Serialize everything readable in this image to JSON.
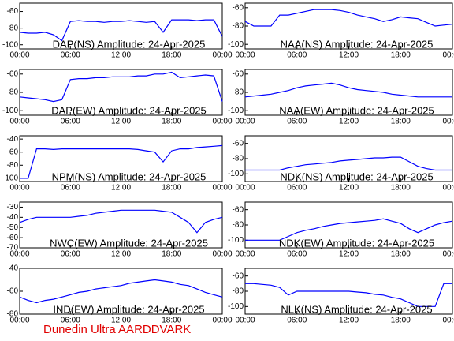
{
  "footer": "Dunedin Ultra AARDDVARK",
  "chart_data": [
    {
      "type": "line",
      "title": "DAP(NS) Amplitude: 24-Apr-2025",
      "color": "#0000ff",
      "x": [
        0,
        1,
        2,
        3,
        4,
        5,
        6,
        7,
        8,
        9,
        10,
        11,
        12,
        13,
        14,
        15,
        16,
        17,
        18,
        19,
        20,
        21,
        22,
        23,
        24
      ],
      "values": [
        -85,
        -86,
        -86,
        -85,
        -88,
        -95,
        -72,
        -71,
        -72,
        -72,
        -73,
        -72,
        -72,
        -71,
        -72,
        -73,
        -72,
        -85,
        -70,
        -70,
        -70,
        -71,
        -70,
        -70,
        -90
      ],
      "xlim": [
        0,
        24
      ],
      "ylim": [
        -105,
        -50
      ],
      "yticks": [
        -60,
        -80,
        -100
      ],
      "xticks": [
        {
          "value": 0,
          "label": "00:00"
        },
        {
          "value": 6,
          "label": "06:00"
        },
        {
          "value": 12,
          "label": "12:00"
        },
        {
          "value": 18,
          "label": "18:00"
        },
        {
          "value": 24,
          "label": "00:00"
        }
      ]
    },
    {
      "type": "line",
      "title": "NAA(NS) Amplitude: 24-Apr-2025",
      "color": "#0000ff",
      "x": [
        0,
        1,
        2,
        3,
        4,
        5,
        6,
        7,
        8,
        9,
        10,
        11,
        12,
        13,
        14,
        15,
        16,
        17,
        18,
        19,
        20,
        21,
        22,
        23,
        24
      ],
      "values": [
        -75,
        -80,
        -80,
        -80,
        -68,
        -68,
        -66,
        -64,
        -62,
        -62,
        -62,
        -63,
        -65,
        -68,
        -70,
        -72,
        -75,
        -73,
        -70,
        -71,
        -72,
        -76,
        -80,
        -79,
        -78
      ],
      "xlim": [
        0,
        24
      ],
      "ylim": [
        -105,
        -55
      ],
      "yticks": [
        -60,
        -80,
        -100
      ],
      "xticks": [
        {
          "value": 0,
          "label": "00:00"
        },
        {
          "value": 6,
          "label": "06:00"
        },
        {
          "value": 12,
          "label": "12:00"
        },
        {
          "value": 18,
          "label": "18:00"
        },
        {
          "value": 24,
          "label": "00:00"
        }
      ]
    },
    {
      "type": "line",
      "title": "DAP(EW) Amplitude: 24-Apr-2025",
      "color": "#0000ff",
      "x": [
        0,
        1,
        2,
        3,
        4,
        5,
        6,
        7,
        8,
        9,
        10,
        11,
        12,
        13,
        14,
        15,
        16,
        17,
        18,
        19,
        20,
        21,
        22,
        23,
        24
      ],
      "values": [
        -85,
        -86,
        -87,
        -88,
        -90,
        -88,
        -66,
        -65,
        -65,
        -64,
        -64,
        -63,
        -63,
        -63,
        -62,
        -62,
        -60,
        -60,
        -58,
        -64,
        -63,
        -62,
        -61,
        -62,
        -90
      ],
      "xlim": [
        0,
        24
      ],
      "ylim": [
        -105,
        -55
      ],
      "yticks": [
        -60,
        -80,
        -100
      ],
      "xticks": [
        {
          "value": 0,
          "label": "00:00"
        },
        {
          "value": 6,
          "label": "06:00"
        },
        {
          "value": 12,
          "label": "12:00"
        },
        {
          "value": 18,
          "label": "18:00"
        },
        {
          "value": 24,
          "label": "00:00"
        }
      ]
    },
    {
      "type": "line",
      "title": "NAA(EW) Amplitude: 24-Apr-2025",
      "color": "#0000ff",
      "x": [
        0,
        1,
        2,
        3,
        4,
        5,
        6,
        7,
        8,
        9,
        10,
        11,
        12,
        13,
        14,
        15,
        16,
        17,
        18,
        19,
        20,
        21,
        22,
        23,
        24
      ],
      "values": [
        -85,
        -84,
        -83,
        -82,
        -80,
        -78,
        -75,
        -73,
        -72,
        -71,
        -70,
        -72,
        -75,
        -77,
        -78,
        -79,
        -80,
        -82,
        -83,
        -84,
        -85,
        -85,
        -85,
        -85,
        -85
      ],
      "xlim": [
        0,
        24
      ],
      "ylim": [
        -105,
        -55
      ],
      "yticks": [
        -60,
        -80,
        -100
      ],
      "xticks": [
        {
          "value": 0,
          "label": "00:00"
        },
        {
          "value": 6,
          "label": "06:00"
        },
        {
          "value": 12,
          "label": "12:00"
        },
        {
          "value": 18,
          "label": "18:00"
        },
        {
          "value": 24,
          "label": "00:00"
        }
      ]
    },
    {
      "type": "line",
      "title": "NPM(NS) Amplitude: 24-Apr-2025",
      "color": "#0000ff",
      "x": [
        0,
        1,
        2,
        3,
        4,
        5,
        6,
        7,
        8,
        9,
        10,
        11,
        12,
        13,
        14,
        15,
        16,
        17,
        18,
        19,
        20,
        21,
        22,
        23,
        24
      ],
      "values": [
        -100,
        -100,
        -55,
        -55,
        -56,
        -55,
        -55,
        -55,
        -55,
        -55,
        -55,
        -55,
        -55,
        -55,
        -56,
        -58,
        -60,
        -75,
        -58,
        -55,
        -55,
        -53,
        -52,
        -51,
        -50
      ],
      "xlim": [
        0,
        24
      ],
      "ylim": [
        -105,
        -35
      ],
      "yticks": [
        -40,
        -60,
        -80,
        -100
      ],
      "xticks": [
        {
          "value": 0,
          "label": "00:00"
        },
        {
          "value": 6,
          "label": "06:00"
        },
        {
          "value": 12,
          "label": "12:00"
        },
        {
          "value": 18,
          "label": "18:00"
        },
        {
          "value": 24,
          "label": "00:00"
        }
      ]
    },
    {
      "type": "line",
      "title": "NDK(NS) Amplitude: 24-Apr-2025",
      "color": "#0000ff",
      "x": [
        0,
        1,
        2,
        3,
        4,
        5,
        6,
        7,
        8,
        9,
        10,
        11,
        12,
        13,
        14,
        15,
        16,
        17,
        18,
        19,
        20,
        21,
        22,
        23,
        24
      ],
      "values": [
        -95,
        -95,
        -95,
        -95,
        -95,
        -92,
        -90,
        -88,
        -87,
        -86,
        -85,
        -83,
        -82,
        -81,
        -80,
        -79,
        -79,
        -78,
        -78,
        -84,
        -90,
        -93,
        -95,
        -95,
        -95
      ],
      "xlim": [
        0,
        24
      ],
      "ylim": [
        -110,
        -50
      ],
      "yticks": [
        -60,
        -80,
        -100
      ],
      "xticks": [
        {
          "value": 0,
          "label": "00:00"
        },
        {
          "value": 6,
          "label": "06:00"
        },
        {
          "value": 12,
          "label": "12:00"
        },
        {
          "value": 18,
          "label": "18:00"
        },
        {
          "value": 24,
          "label": "00:00"
        }
      ]
    },
    {
      "type": "line",
      "title": "NWC(EW) Amplitude: 24-Apr-2025",
      "color": "#0000ff",
      "x": [
        0,
        1,
        2,
        3,
        4,
        5,
        6,
        7,
        8,
        9,
        10,
        11,
        12,
        13,
        14,
        15,
        16,
        17,
        18,
        19,
        20,
        21,
        22,
        23,
        24
      ],
      "values": [
        -45,
        -42,
        -40,
        -40,
        -40,
        -40,
        -40,
        -39,
        -38,
        -36,
        -35,
        -34,
        -33,
        -33,
        -33,
        -33,
        -33,
        -34,
        -35,
        -40,
        -45,
        -55,
        -45,
        -42,
        -40
      ],
      "xlim": [
        0,
        24
      ],
      "ylim": [
        -70,
        -25
      ],
      "yticks": [
        -30,
        -40,
        -50,
        -60,
        -70
      ],
      "xticks": [
        {
          "value": 0,
          "label": "00:00"
        },
        {
          "value": 6,
          "label": "06:00"
        },
        {
          "value": 12,
          "label": "12:00"
        },
        {
          "value": 18,
          "label": "18:00"
        },
        {
          "value": 24,
          "label": "00:00"
        }
      ]
    },
    {
      "type": "line",
      "title": "NDK(EW) Amplitude: 24-Apr-2025",
      "color": "#0000ff",
      "x": [
        0,
        1,
        2,
        3,
        4,
        5,
        6,
        7,
        8,
        9,
        10,
        11,
        12,
        13,
        14,
        15,
        16,
        17,
        18,
        19,
        20,
        21,
        22,
        23,
        24
      ],
      "values": [
        -100,
        -100,
        -100,
        -100,
        -100,
        -95,
        -90,
        -87,
        -85,
        -82,
        -80,
        -78,
        -77,
        -76,
        -75,
        -74,
        -72,
        -75,
        -78,
        -85,
        -90,
        -85,
        -80,
        -77,
        -75
      ],
      "xlim": [
        0,
        24
      ],
      "ylim": [
        -110,
        -50
      ],
      "yticks": [
        -60,
        -80,
        -100
      ],
      "xticks": [
        {
          "value": 0,
          "label": "00:00"
        },
        {
          "value": 6,
          "label": "06:00"
        },
        {
          "value": 12,
          "label": "12:00"
        },
        {
          "value": 18,
          "label": "18:00"
        },
        {
          "value": 24,
          "label": "00:00"
        }
      ]
    },
    {
      "type": "line",
      "title": "IND(EW) Amplitude: 24-Apr-2025",
      "color": "#0000ff",
      "x": [
        0,
        1,
        2,
        3,
        4,
        5,
        6,
        7,
        8,
        9,
        10,
        11,
        12,
        13,
        14,
        15,
        16,
        17,
        18,
        19,
        20,
        21,
        22,
        23,
        24
      ],
      "values": [
        -65,
        -68,
        -70,
        -68,
        -67,
        -65,
        -63,
        -61,
        -60,
        -58,
        -57,
        -56,
        -55,
        -53,
        -52,
        -51,
        -50,
        -51,
        -52,
        -54,
        -55,
        -58,
        -61,
        -63,
        -65
      ],
      "xlim": [
        0,
        24
      ],
      "ylim": [
        -80,
        -40
      ],
      "yticks": [
        -40,
        -60,
        -80
      ],
      "xticks": [
        {
          "value": 0,
          "label": "00:00"
        },
        {
          "value": 6,
          "label": "06:00"
        },
        {
          "value": 12,
          "label": "12:00"
        },
        {
          "value": 18,
          "label": "18:00"
        },
        {
          "value": 24,
          "label": "00:00"
        }
      ]
    },
    {
      "type": "line",
      "title": "NLK(NS) Amplitude: 24-Apr-2025",
      "color": "#0000ff",
      "x": [
        0,
        1,
        2,
        3,
        4,
        5,
        6,
        7,
        8,
        9,
        10,
        11,
        12,
        13,
        14,
        15,
        16,
        17,
        18,
        19,
        20,
        21,
        22,
        23,
        24
      ],
      "values": [
        -70,
        -70,
        -71,
        -72,
        -75,
        -85,
        -80,
        -80,
        -80,
        -80,
        -80,
        -80,
        -80,
        -81,
        -82,
        -84,
        -85,
        -88,
        -90,
        -95,
        -100,
        -100,
        -100,
        -70,
        -70
      ],
      "xlim": [
        0,
        24
      ],
      "ylim": [
        -110,
        -50
      ],
      "yticks": [
        -60,
        -80,
        -100
      ],
      "xticks": [
        {
          "value": 0,
          "label": "00:00"
        },
        {
          "value": 6,
          "label": "06:00"
        },
        {
          "value": 12,
          "label": "12:00"
        },
        {
          "value": 18,
          "label": "18:00"
        },
        {
          "value": 24,
          "label": "00:00"
        }
      ]
    }
  ]
}
